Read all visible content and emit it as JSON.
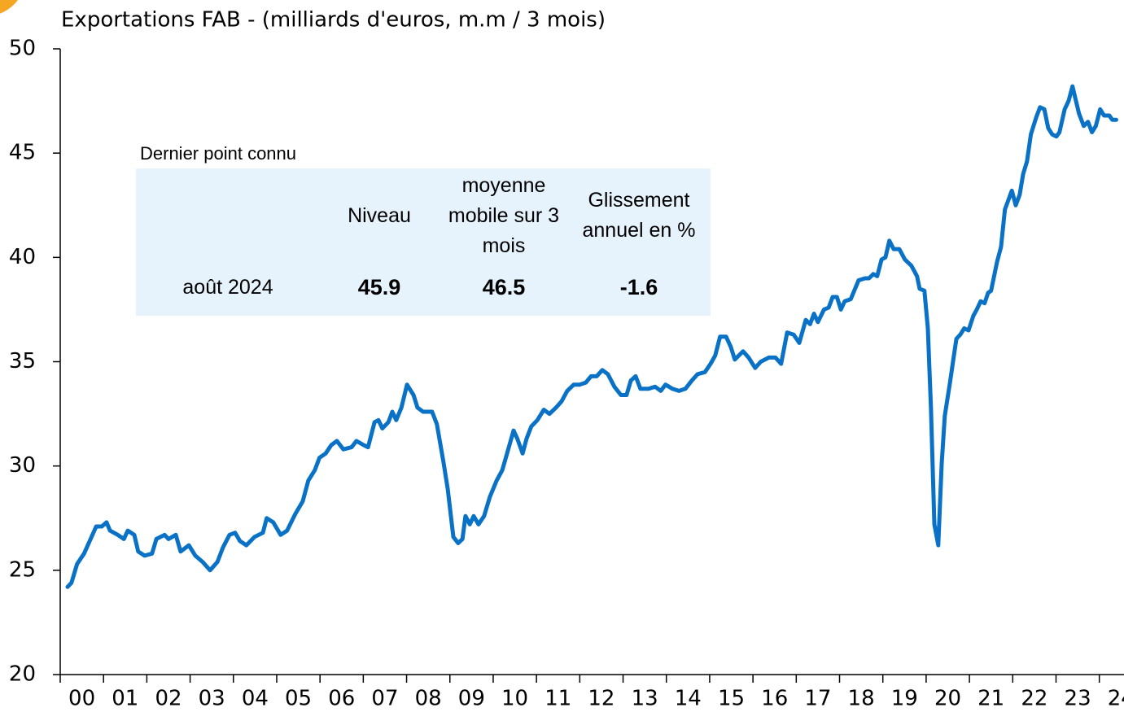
{
  "chart_data": {
    "type": "line",
    "title": "Exportations FAB - (milliards d'euros, m.m / 3 mois)",
    "x": [
      2000.17,
      2000.26,
      2000.39,
      2000.55,
      2000.68,
      2000.83,
      2000.96,
      2001.07,
      2001.15,
      2001.33,
      2001.47,
      2001.56,
      2001.71,
      2001.8,
      2001.95,
      2002.12,
      2002.22,
      2002.41,
      2002.5,
      2002.67,
      2002.78,
      2002.97,
      2003.12,
      2003.29,
      2003.46,
      2003.63,
      2003.76,
      2003.91,
      2004.04,
      2004.15,
      2004.3,
      2004.49,
      2004.68,
      2004.77,
      2004.92,
      2005.09,
      2005.24,
      2005.43,
      2005.6,
      2005.73,
      2005.88,
      2005.99,
      2006.13,
      2006.26,
      2006.39,
      2006.54,
      2006.73,
      2006.84,
      2007.01,
      2007.11,
      2007.26,
      2007.35,
      2007.44,
      2007.58,
      2007.67,
      2007.76,
      2007.88,
      2008.01,
      2008.16,
      2008.25,
      2008.38,
      2008.59,
      2008.7,
      2008.85,
      2008.95,
      2009.08,
      2009.19,
      2009.29,
      2009.36,
      2009.46,
      2009.55,
      2009.66,
      2009.79,
      2009.92,
      2010.08,
      2010.21,
      2010.32,
      2010.47,
      2010.56,
      2010.68,
      2010.77,
      2010.88,
      2011.02,
      2011.17,
      2011.3,
      2011.45,
      2011.58,
      2011.71,
      2011.86,
      2012.0,
      2012.14,
      2012.26,
      2012.39,
      2012.52,
      2012.65,
      2012.8,
      2012.95,
      2013.08,
      2013.18,
      2013.29,
      2013.4,
      2013.59,
      2013.74,
      2013.87,
      2013.98,
      2014.14,
      2014.29,
      2014.44,
      2014.59,
      2014.72,
      2014.89,
      2015.02,
      2015.13,
      2015.24,
      2015.38,
      2015.49,
      2015.58,
      2015.77,
      2015.9,
      2016.05,
      2016.18,
      2016.37,
      2016.52,
      2016.65,
      2016.79,
      2016.94,
      2017.07,
      2017.22,
      2017.32,
      2017.41,
      2017.5,
      2017.64,
      2017.75,
      2017.84,
      2017.94,
      2018.03,
      2018.12,
      2018.26,
      2018.44,
      2018.59,
      2018.68,
      2018.78,
      2018.87,
      2018.97,
      2019.06,
      2019.15,
      2019.25,
      2019.38,
      2019.51,
      2019.66,
      2019.79,
      2019.85,
      2019.96,
      2020.04,
      2020.11,
      2020.19,
      2020.28,
      2020.36,
      2020.43,
      2020.55,
      2020.62,
      2020.7,
      2020.79,
      2020.88,
      2020.98,
      2021.09,
      2021.17,
      2021.26,
      2021.35,
      2021.43,
      2021.5,
      2021.64,
      2021.73,
      2021.82,
      2021.98,
      2022.07,
      2022.16,
      2022.24,
      2022.33,
      2022.42,
      2022.54,
      2022.63,
      2022.73,
      2022.82,
      2022.91,
      2023.01,
      2023.08,
      2023.2,
      2023.29,
      2023.38,
      2023.46,
      2023.53,
      2023.64,
      2023.74,
      2023.83,
      2023.92,
      2024.02,
      2024.11,
      2024.23,
      2024.3,
      2024.39
    ],
    "series": [
      {
        "color": "#0a72c6",
        "values": [
          24.2,
          24.4,
          25.3,
          25.8,
          26.4,
          27.1,
          27.1,
          27.3,
          26.9,
          26.7,
          26.5,
          26.9,
          26.7,
          25.9,
          25.7,
          25.8,
          26.5,
          26.7,
          26.5,
          26.7,
          25.9,
          26.2,
          25.7,
          25.4,
          25.0,
          25.4,
          26.1,
          26.7,
          26.8,
          26.4,
          26.2,
          26.6,
          26.8,
          27.5,
          27.3,
          26.7,
          26.9,
          27.7,
          28.3,
          29.3,
          29.8,
          30.4,
          30.6,
          31.0,
          31.2,
          30.8,
          30.9,
          31.2,
          31.0,
          30.9,
          32.1,
          32.2,
          31.8,
          32.1,
          32.6,
          32.2,
          32.8,
          33.9,
          33.4,
          32.8,
          32.6,
          32.6,
          32.0,
          30.2,
          28.9,
          26.6,
          26.3,
          26.5,
          27.6,
          27.2,
          27.6,
          27.2,
          27.6,
          28.5,
          29.3,
          29.8,
          30.6,
          31.7,
          31.3,
          30.6,
          31.3,
          31.9,
          32.2,
          32.7,
          32.5,
          32.8,
          33.1,
          33.6,
          33.9,
          33.9,
          34.0,
          34.3,
          34.3,
          34.6,
          34.4,
          33.8,
          33.4,
          33.4,
          34.1,
          34.3,
          33.7,
          33.7,
          33.8,
          33.6,
          33.9,
          33.7,
          33.6,
          33.7,
          34.1,
          34.4,
          34.5,
          34.9,
          35.3,
          36.2,
          36.2,
          35.7,
          35.1,
          35.5,
          35.2,
          34.7,
          35.0,
          35.2,
          35.2,
          34.9,
          36.4,
          36.3,
          35.9,
          37.0,
          36.8,
          37.3,
          36.9,
          37.5,
          37.6,
          38.1,
          38.1,
          37.5,
          37.9,
          38.0,
          38.9,
          39.0,
          39.0,
          39.2,
          39.1,
          39.9,
          40.0,
          40.8,
          40.4,
          40.4,
          39.9,
          39.6,
          39.1,
          38.5,
          38.4,
          36.6,
          32.8,
          27.2,
          26.2,
          30.1,
          32.4,
          34.0,
          35.0,
          36.1,
          36.3,
          36.6,
          36.5,
          37.2,
          37.5,
          37.9,
          37.8,
          38.3,
          38.4,
          39.8,
          40.5,
          42.3,
          43.2,
          42.5,
          43.0,
          44.0,
          44.6,
          45.9,
          46.7,
          47.2,
          47.1,
          46.2,
          45.9,
          45.8,
          46.0,
          47.1,
          47.5,
          48.2,
          47.5,
          46.9,
          46.3,
          46.5,
          46.0,
          46.3,
          47.1,
          46.8,
          46.8,
          46.6,
          46.6
        ]
      }
    ],
    "xlim": [
      2000,
      2024.57
    ],
    "xticks": [
      {
        "value": 2000,
        "label": "00"
      },
      {
        "value": 2001,
        "label": "01"
      },
      {
        "value": 2002,
        "label": "02"
      },
      {
        "value": 2003,
        "label": "03"
      },
      {
        "value": 2004,
        "label": "04"
      },
      {
        "value": 2005,
        "label": "05"
      },
      {
        "value": 2006,
        "label": "06"
      },
      {
        "value": 2007,
        "label": "07"
      },
      {
        "value": 2008,
        "label": "08"
      },
      {
        "value": 2009,
        "label": "09"
      },
      {
        "value": 2010,
        "label": "10"
      },
      {
        "value": 2011,
        "label": "11"
      },
      {
        "value": 2012,
        "label": "12"
      },
      {
        "value": 2013,
        "label": "13"
      },
      {
        "value": 2014,
        "label": "14"
      },
      {
        "value": 2015,
        "label": "15"
      },
      {
        "value": 2016,
        "label": "16"
      },
      {
        "value": 2017,
        "label": "17"
      },
      {
        "value": 2018,
        "label": "18"
      },
      {
        "value": 2019,
        "label": "19"
      },
      {
        "value": 2020,
        "label": "20"
      },
      {
        "value": 2021,
        "label": "21"
      },
      {
        "value": 2022,
        "label": "22"
      },
      {
        "value": 2023,
        "label": "23"
      },
      {
        "value": 2024,
        "label": "24"
      }
    ],
    "ylim": [
      20,
      50
    ],
    "yticks": [
      20,
      25,
      30,
      35,
      40,
      45,
      50
    ],
    "grid": false,
    "annotation_table": {
      "caption": "Dernier point connu",
      "headers": [
        "Niveau",
        "moyenne mobile sur 3 mois",
        "Glissement annuel en %"
      ],
      "row_label": "août 2024",
      "values": [
        45.9,
        46.5,
        -1.6
      ]
    }
  }
}
